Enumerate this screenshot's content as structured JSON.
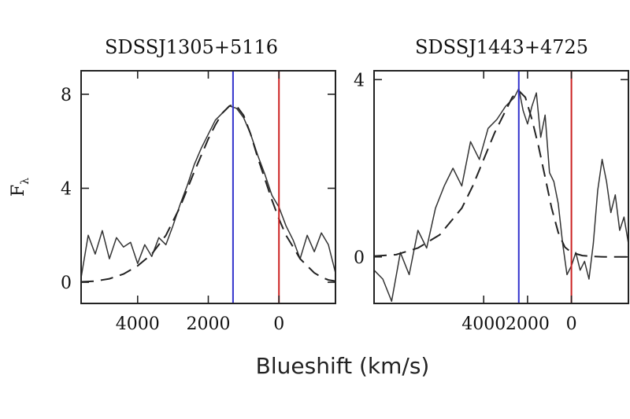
{
  "figure": {
    "xlabel": "Blueshift (km/s)",
    "ylabel_main": "F",
    "ylabel_sub": "λ"
  },
  "colors": {
    "blue_line": "#3333cc",
    "red_line": "#cc2222",
    "observed": "#333333",
    "model": "#222222"
  },
  "chart_data": [
    {
      "type": "line",
      "title": "SDSSJ1305+5116",
      "xlabel": "Blueshift (km/s)",
      "ylabel": "Fλ",
      "x_reversed": true,
      "xlim": [
        5600,
        -1600
      ],
      "ylim": [
        -0.9,
        9.0
      ],
      "xticks": [
        4000,
        2000,
        0
      ],
      "yticks": [
        0,
        4,
        8
      ],
      "vlines": [
        {
          "x": 1300,
          "color": "#3333cc"
        },
        {
          "x": 0,
          "color": "#cc2222"
        }
      ],
      "series": [
        {
          "style": "solid",
          "x": [
            5600,
            5400,
            5200,
            5000,
            4800,
            4600,
            4400,
            4200,
            4000,
            3800,
            3600,
            3400,
            3200,
            3000,
            2800,
            2600,
            2400,
            2200,
            2000,
            1800,
            1600,
            1400,
            1200,
            1000,
            800,
            600,
            400,
            200,
            0,
            -200,
            -400,
            -600,
            -800,
            -1000,
            -1200,
            -1400,
            -1600
          ],
          "y": [
            0.2,
            2.0,
            1.2,
            2.2,
            1.0,
            1.9,
            1.5,
            1.7,
            0.8,
            1.6,
            1.1,
            1.9,
            1.6,
            2.4,
            3.3,
            4.1,
            5.0,
            5.7,
            6.3,
            6.9,
            7.2,
            7.5,
            7.4,
            7.0,
            6.3,
            5.4,
            4.6,
            3.7,
            3.2,
            2.4,
            1.8,
            1.0,
            2.0,
            1.3,
            2.1,
            1.6,
            0.4
          ]
        },
        {
          "style": "dashed",
          "x": [
            5600,
            5200,
            4800,
            4400,
            4000,
            3600,
            3200,
            2800,
            2400,
            2000,
            1800,
            1600,
            1400,
            1300,
            1200,
            1000,
            800,
            600,
            400,
            200,
            0,
            -200,
            -400,
            -600,
            -800,
            -1000,
            -1200,
            -1400,
            -1600
          ],
          "y": [
            0.02,
            0.05,
            0.15,
            0.35,
            0.7,
            1.2,
            2.0,
            3.2,
            4.7,
            6.1,
            6.7,
            7.2,
            7.5,
            7.55,
            7.5,
            7.1,
            6.3,
            5.3,
            4.4,
            3.5,
            2.7,
            2.0,
            1.5,
            1.0,
            0.7,
            0.4,
            0.22,
            0.1,
            0.05
          ]
        }
      ]
    },
    {
      "type": "line",
      "title": "SDSSJ1443+4725",
      "xlabel": "Blueshift (km/s)",
      "ylabel": "Fλ",
      "x_reversed": true,
      "xlim": [
        9000,
        -2600
      ],
      "ylim": [
        -1.05,
        4.2
      ],
      "xticks": [
        4000,
        2000,
        0
      ],
      "yticks": [
        0,
        4
      ],
      "vlines": [
        {
          "x": 2400,
          "color": "#3333cc"
        },
        {
          "x": 0,
          "color": "#cc2222"
        }
      ],
      "series": [
        {
          "style": "solid",
          "x": [
            9000,
            8600,
            8200,
            7800,
            7400,
            7000,
            6600,
            6200,
            5800,
            5400,
            5000,
            4600,
            4200,
            3800,
            3400,
            3000,
            2600,
            2400,
            2200,
            2000,
            1800,
            1600,
            1400,
            1200,
            1000,
            800,
            600,
            400,
            200,
            0,
            -200,
            -400,
            -600,
            -800,
            -1000,
            -1200,
            -1400,
            -1600,
            -1800,
            -2000,
            -2200,
            -2400,
            -2600
          ],
          "y": [
            -0.3,
            -0.5,
            -1.0,
            0.1,
            -0.4,
            0.6,
            0.2,
            1.1,
            1.6,
            2.0,
            1.6,
            2.6,
            2.2,
            2.9,
            3.1,
            3.4,
            3.6,
            3.8,
            3.3,
            3.0,
            3.4,
            3.7,
            2.7,
            3.2,
            1.9,
            1.7,
            1.2,
            0.3,
            -0.4,
            -0.2,
            0.1,
            -0.3,
            -0.1,
            -0.5,
            0.3,
            1.5,
            2.2,
            1.7,
            1.0,
            1.4,
            0.6,
            0.9,
            0.3
          ]
        },
        {
          "style": "dashed",
          "x": [
            9000,
            8000,
            7000,
            6000,
            5000,
            4500,
            4000,
            3500,
            3000,
            2700,
            2400,
            2100,
            1800,
            1500,
            1200,
            900,
            600,
            300,
            0,
            -500,
            -1000,
            -1500,
            -2000,
            -2600
          ],
          "y": [
            0.02,
            0.05,
            0.2,
            0.5,
            1.1,
            1.6,
            2.2,
            2.8,
            3.3,
            3.6,
            3.75,
            3.6,
            3.1,
            2.5,
            1.8,
            1.1,
            0.55,
            0.22,
            0.1,
            0.03,
            0.01,
            0.0,
            0.0,
            0.0
          ]
        }
      ]
    }
  ]
}
